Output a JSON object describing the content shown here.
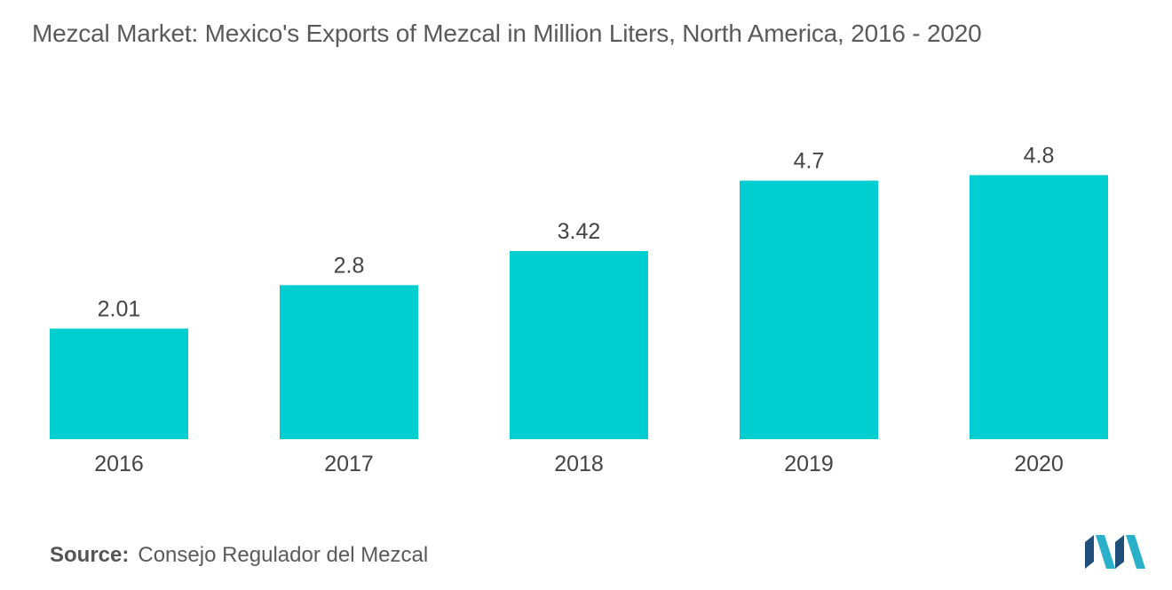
{
  "chart_data": {
    "type": "bar",
    "title": "Mezcal Market: Mexico's Exports of Mezcal in Million Liters, North America, 2016 - 2020",
    "categories": [
      "2016",
      "2017",
      "2018",
      "2019",
      "2020"
    ],
    "values": [
      2.01,
      2.8,
      3.42,
      4.7,
      4.8
    ],
    "value_labels": [
      "2.01",
      "2.8",
      "3.42",
      "4.7",
      "4.8"
    ],
    "xlabel": "",
    "ylabel": "",
    "ylim": [
      0,
      5
    ],
    "grid": false,
    "legend": "none",
    "bar_color": "#00CED1"
  },
  "source": {
    "label": "Source:",
    "text": "Consejo Regulador del Mezcal"
  },
  "logo": {
    "icon": "mordor-intelligence-logo-icon",
    "colors": [
      "#1E4E79",
      "#2BB0C9"
    ]
  }
}
